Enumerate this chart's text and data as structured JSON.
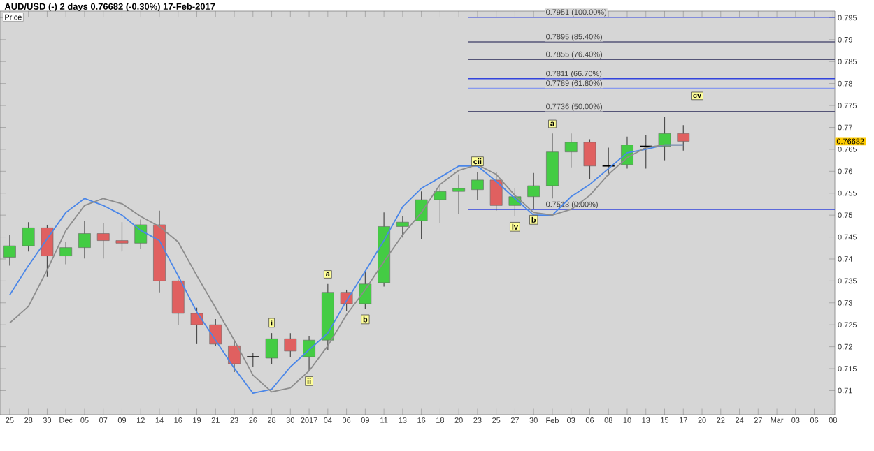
{
  "chart_data": {
    "type": "candlestick",
    "title": "AUD/USD (-)   2 days   0.76682 (-0.30%)   17-Feb-2017",
    "subtitle": "Price",
    "categories": [
      "25",
      "28",
      "30",
      "Dec",
      "05",
      "07",
      "09",
      "12",
      "14",
      "16",
      "19",
      "21",
      "23",
      "26",
      "28",
      "30",
      "2017",
      "04",
      "06",
      "09",
      "11",
      "13",
      "16",
      "18",
      "20",
      "23",
      "25",
      "27",
      "30",
      "Feb",
      "03",
      "06",
      "08",
      "10",
      "13",
      "15",
      "17",
      "20",
      "22",
      "24",
      "27",
      "Mar",
      "03",
      "06",
      "08"
    ],
    "ohlc": [
      [
        0.7404,
        0.7455,
        0.7385,
        0.743
      ],
      [
        0.743,
        0.7484,
        0.7417,
        0.7471
      ],
      [
        0.7471,
        0.7478,
        0.7359,
        0.7407
      ],
      [
        0.7407,
        0.7439,
        0.7388,
        0.7426
      ],
      [
        0.7426,
        0.7487,
        0.7401,
        0.7458
      ],
      [
        0.7458,
        0.7481,
        0.7401,
        0.7442
      ],
      [
        0.7442,
        0.7484,
        0.7417,
        0.7436
      ],
      [
        0.7436,
        0.749,
        0.7423,
        0.7478
      ],
      [
        0.7478,
        0.751,
        0.7324,
        0.735
      ],
      [
        0.735,
        0.7353,
        0.725,
        0.7276
      ],
      [
        0.7276,
        0.7289,
        0.7206,
        0.725
      ],
      [
        0.725,
        0.7263,
        0.7202,
        0.7206
      ],
      [
        0.7202,
        0.7215,
        0.7142,
        0.7161
      ],
      [
        0.7177,
        0.7186,
        0.7154,
        0.7177
      ],
      [
        0.7174,
        0.7231,
        0.7161,
        0.7218
      ],
      [
        0.7218,
        0.7231,
        0.7177,
        0.719
      ],
      [
        0.7177,
        0.7225,
        0.7145,
        0.7215
      ],
      [
        0.7215,
        0.7343,
        0.7193,
        0.7324
      ],
      [
        0.7324,
        0.733,
        0.7282,
        0.7298
      ],
      [
        0.7298,
        0.7372,
        0.7286,
        0.7343
      ],
      [
        0.7346,
        0.7506,
        0.7337,
        0.7474
      ],
      [
        0.7474,
        0.7497,
        0.7449,
        0.7484
      ],
      [
        0.7487,
        0.7554,
        0.7446,
        0.7535
      ],
      [
        0.7535,
        0.7567,
        0.7481,
        0.7554
      ],
      [
        0.7554,
        0.7593,
        0.7503,
        0.7561
      ],
      [
        0.7558,
        0.7599,
        0.7535,
        0.758
      ],
      [
        0.758,
        0.7599,
        0.751,
        0.7522
      ],
      [
        0.7522,
        0.7561,
        0.7497,
        0.7542
      ],
      [
        0.7542,
        0.7596,
        0.7513,
        0.7567
      ],
      [
        0.7567,
        0.7686,
        0.7538,
        0.7644
      ],
      [
        0.7644,
        0.7686,
        0.7609,
        0.7666
      ],
      [
        0.7666,
        0.7673,
        0.7583,
        0.7612
      ],
      [
        0.7612,
        0.7654,
        0.759,
        0.7612
      ],
      [
        0.7615,
        0.7679,
        0.7606,
        0.766
      ],
      [
        0.7657,
        0.7682,
        0.7606,
        0.7657
      ],
      [
        0.7657,
        0.7724,
        0.7625,
        0.7686
      ],
      [
        0.7686,
        0.7705,
        0.7647,
        0.76682
      ],
      null,
      null,
      null,
      null,
      null,
      null,
      null,
      null
    ],
    "series": [
      {
        "type": "line",
        "color": "#4a86e8",
        "values": [
          0.7318,
          0.7385,
          0.7446,
          0.7506,
          0.7538,
          0.7522,
          0.75,
          0.7465,
          0.7442,
          0.7362,
          0.7279,
          0.7215,
          0.7151,
          0.7094,
          0.7103,
          0.7154,
          0.7193,
          0.7231,
          0.7305,
          0.7372,
          0.7442,
          0.7519,
          0.7561,
          0.7586,
          0.7612,
          0.7612,
          0.7577,
          0.7538,
          0.75,
          0.75,
          0.7542,
          0.757,
          0.7606,
          0.7642,
          0.765,
          0.766,
          0.766,
          null,
          null,
          null,
          null,
          null,
          null,
          null,
          null
        ]
      },
      {
        "type": "line",
        "color": "#8c8c8c",
        "values": [
          0.7254,
          0.7292,
          0.7375,
          0.7465,
          0.7522,
          0.7538,
          0.7526,
          0.7497,
          0.7474,
          0.7439,
          0.7362,
          0.7289,
          0.7215,
          0.7135,
          0.7097,
          0.7106,
          0.7145,
          0.7202,
          0.7273,
          0.733,
          0.7394,
          0.7455,
          0.7506,
          0.757,
          0.7602,
          0.7615,
          0.7593,
          0.7545,
          0.7506,
          0.75,
          0.7513,
          0.7545,
          0.7593,
          0.7631,
          0.7654,
          0.766,
          0.766,
          null,
          null,
          null,
          null,
          null,
          null,
          null,
          null
        ]
      }
    ],
    "ylim": [
      0.7045,
      0.7965
    ],
    "yticks": [
      0.71,
      0.715,
      0.72,
      0.725,
      0.73,
      0.735,
      0.74,
      0.745,
      0.75,
      0.755,
      0.76,
      0.765,
      0.77,
      0.775,
      0.78,
      0.785,
      0.79,
      0.795
    ],
    "ref_lines": [
      {
        "axis": "y",
        "value": 0.7951,
        "label": "0.7951 (100.00%)",
        "color": "#3344dd"
      },
      {
        "axis": "y",
        "value": 0.7895,
        "label": "0.7895 (85.40%)",
        "color": "#555577"
      },
      {
        "axis": "y",
        "value": 0.7855,
        "label": "0.7855 (76.40%)",
        "color": "#555577"
      },
      {
        "axis": "y",
        "value": 0.7811,
        "label": "0.7811 (66.70%)",
        "color": "#3344dd"
      },
      {
        "axis": "y",
        "value": 0.7789,
        "label": "0.7789 (61.80%)",
        "color": "#8899ee"
      },
      {
        "axis": "y",
        "value": 0.7736,
        "label": "0.7736 (50.00%)",
        "color": "#555577"
      },
      {
        "axis": "y",
        "value": 0.7513,
        "label": "0.7513 (0.00%)",
        "color": "#3344dd"
      }
    ],
    "annotations": [
      "i",
      {
        "text": "ii",
        "x": "2017",
        "y": 0.7145
      },
      {
        "text": "a",
        "x": "04",
        "y": 0.7343
      },
      "b",
      "cii",
      {
        "text": "iv",
        "x": "27",
        "y": 0.7497
      },
      "b",
      {
        "text": "a",
        "x": "Feb",
        "y": 0.7686
      },
      "cv",
      "0.76682"
    ],
    "grid": false
  }
}
